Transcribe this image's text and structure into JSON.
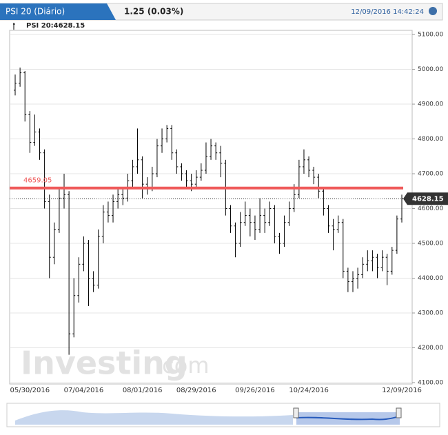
{
  "header": {
    "title": "PSI 20 (Diário)",
    "change": "1.25 (0.03%)",
    "timestamp": "12/09/2016 14:42:24"
  },
  "chart_data": {
    "type": "ohlc",
    "legend": "PSI 20:4628.15",
    "watermark": "Investing",
    "watermark_suffix": ".com",
    "categories": [
      null,
      null,
      null,
      "05/30/2016",
      null,
      null,
      null,
      null,
      null,
      null,
      null,
      null,
      null,
      null,
      "07/04/2016",
      null,
      null,
      null,
      null,
      null,
      null,
      null,
      null,
      null,
      null,
      null,
      "08/01/2016",
      null,
      null,
      null,
      null,
      null,
      null,
      null,
      null,
      null,
      null,
      "08/29/2016",
      null,
      null,
      null,
      null,
      null,
      null,
      null,
      null,
      null,
      null,
      null,
      "09/26/2016",
      null,
      null,
      null,
      null,
      null,
      null,
      null,
      null,
      null,
      null,
      "10/24/2016",
      null,
      null,
      null,
      null,
      null,
      null,
      null,
      null,
      null,
      null,
      null,
      null,
      null,
      null,
      null,
      null,
      null,
      null,
      "12/09/2016"
    ],
    "ohlc": [
      [
        4940,
        4985,
        4925,
        4960
      ],
      [
        4960,
        5005,
        4950,
        4990
      ],
      [
        4990,
        4995,
        4850,
        4870
      ],
      [
        4870,
        4880,
        4760,
        4790
      ],
      [
        4790,
        4870,
        4780,
        4820
      ],
      [
        4820,
        4830,
        4740,
        4760
      ],
      [
        4760,
        4770,
        4600,
        4620
      ],
      [
        4620,
        4640,
        4400,
        4460
      ],
      [
        4460,
        4560,
        4440,
        4540
      ],
      [
        4540,
        4660,
        4530,
        4630
      ],
      [
        4630,
        4700,
        4600,
        4640
      ],
      [
        4640,
        4650,
        4180,
        4240
      ],
      [
        4240,
        4400,
        4230,
        4350
      ],
      [
        4350,
        4460,
        4330,
        4440
      ],
      [
        4440,
        4520,
        4420,
        4500
      ],
      [
        4500,
        4510,
        4320,
        4400
      ],
      [
        4400,
        4420,
        4360,
        4380
      ],
      [
        4380,
        4540,
        4370,
        4520
      ],
      [
        4520,
        4610,
        4500,
        4590
      ],
      [
        4590,
        4620,
        4560,
        4580
      ],
      [
        4580,
        4640,
        4560,
        4620
      ],
      [
        4620,
        4660,
        4600,
        4640
      ],
      [
        4640,
        4660,
        4610,
        4630
      ],
      [
        4630,
        4700,
        4620,
        4680
      ],
      [
        4680,
        4740,
        4660,
        4720
      ],
      [
        4720,
        4830,
        4700,
        4740
      ],
      [
        4740,
        4750,
        4630,
        4670
      ],
      [
        4670,
        4690,
        4640,
        4660
      ],
      [
        4660,
        4720,
        4650,
        4700
      ],
      [
        4700,
        4800,
        4690,
        4780
      ],
      [
        4780,
        4830,
        4760,
        4800
      ],
      [
        4800,
        4840,
        4790,
        4830
      ],
      [
        4830,
        4840,
        4740,
        4760
      ],
      [
        4760,
        4770,
        4700,
        4720
      ],
      [
        4720,
        4730,
        4680,
        4700
      ],
      [
        4700,
        4710,
        4660,
        4680
      ],
      [
        4680,
        4700,
        4650,
        4670
      ],
      [
        4670,
        4710,
        4660,
        4690
      ],
      [
        4690,
        4730,
        4680,
        4710
      ],
      [
        4710,
        4790,
        4700,
        4750
      ],
      [
        4750,
        4800,
        4740,
        4780
      ],
      [
        4780,
        4790,
        4740,
        4760
      ],
      [
        4760,
        4780,
        4690,
        4730
      ],
      [
        4730,
        4740,
        4580,
        4600
      ],
      [
        4600,
        4610,
        4530,
        4550
      ],
      [
        4550,
        4560,
        4460,
        4500
      ],
      [
        4500,
        4590,
        4490,
        4560
      ],
      [
        4560,
        4620,
        4550,
        4580
      ],
      [
        4580,
        4600,
        4520,
        4560
      ],
      [
        4560,
        4580,
        4510,
        4540
      ],
      [
        4540,
        4630,
        4530,
        4580
      ],
      [
        4580,
        4600,
        4530,
        4560
      ],
      [
        4560,
        4620,
        4550,
        4600
      ],
      [
        4600,
        4610,
        4500,
        4520
      ],
      [
        4520,
        4530,
        4470,
        4500
      ],
      [
        4500,
        4580,
        4490,
        4560
      ],
      [
        4560,
        4620,
        4550,
        4600
      ],
      [
        4600,
        4670,
        4590,
        4640
      ],
      [
        4640,
        4740,
        4630,
        4720
      ],
      [
        4720,
        4770,
        4700,
        4740
      ],
      [
        4740,
        4750,
        4690,
        4710
      ],
      [
        4710,
        4720,
        4670,
        4690
      ],
      [
        4690,
        4700,
        4630,
        4650
      ],
      [
        4650,
        4660,
        4580,
        4600
      ],
      [
        4600,
        4610,
        4530,
        4550
      ],
      [
        4550,
        4570,
        4480,
        4540
      ],
      [
        4540,
        4580,
        4530,
        4560
      ],
      [
        4560,
        4570,
        4400,
        4420
      ],
      [
        4420,
        4430,
        4360,
        4390
      ],
      [
        4390,
        4420,
        4360,
        4400
      ],
      [
        4400,
        4430,
        4370,
        4410
      ],
      [
        4410,
        4460,
        4400,
        4440
      ],
      [
        4440,
        4480,
        4420,
        4450
      ],
      [
        4450,
        4480,
        4420,
        4460
      ],
      [
        4460,
        4470,
        4400,
        4430
      ],
      [
        4430,
        4480,
        4420,
        4460
      ],
      [
        4460,
        4470,
        4380,
        4420
      ],
      [
        4420,
        4490,
        4410,
        4480
      ],
      [
        4480,
        4580,
        4470,
        4570
      ],
      [
        4570,
        4640,
        4560,
        4628.15
      ]
    ],
    "ylim": [
      4096,
      5112
    ],
    "yticks": [
      {
        "value": 4100,
        "label": "4100.00"
      },
      {
        "value": 4200,
        "label": "4200.00"
      },
      {
        "value": 4300,
        "label": "4300.00"
      },
      {
        "value": 4400,
        "label": "4400.00"
      },
      {
        "value": 4500,
        "label": "4500.00"
      },
      {
        "value": 4600,
        "label": "4600.00"
      },
      {
        "value": 4700,
        "label": "4700.00"
      },
      {
        "value": 4800,
        "label": "4800.00"
      },
      {
        "value": 4900,
        "label": "4900.00"
      },
      {
        "value": 5000,
        "label": "5000.00"
      },
      {
        "value": 5100,
        "label": "5100.00"
      }
    ],
    "grid": true,
    "color": "#000000",
    "reference_line": 4659.05,
    "reference_color": "#ef5a5a",
    "last_price": 4628.15
  }
}
